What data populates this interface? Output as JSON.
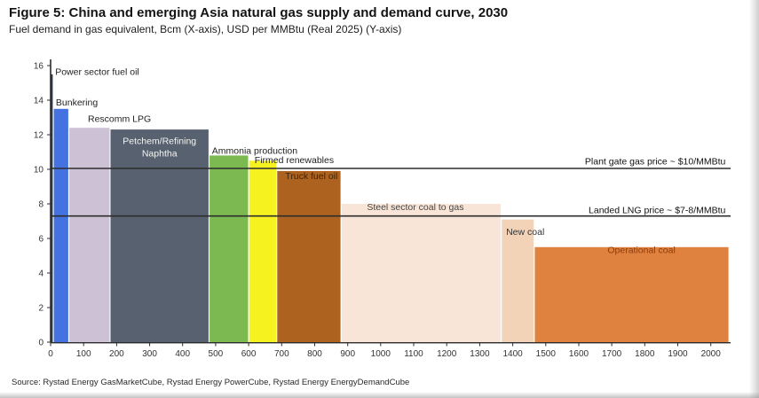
{
  "figure": {
    "title": "Figure 5: China and emerging Asia natural gas supply and demand curve, 2030",
    "subtitle": "Fuel demand in gas equivalent, Bcm (X-axis), USD per MMBtu (Real 2025) (Y-axis)",
    "source": "Source: Rystad Energy GasMarketCube, Rystad Energy PowerCube, Rystad Energy EnergyDemandCube"
  },
  "chart_data": {
    "type": "bar",
    "variant": "supply-demand-step-curve",
    "title": "China and emerging Asia natural gas supply and demand curve, 2030",
    "xlabel": "Fuel demand in gas equivalent, Bcm",
    "ylabel": "USD per MMBtu (Real 2025)",
    "xlim": [
      0,
      2060
    ],
    "ylim": [
      0,
      16
    ],
    "grid": false,
    "x_ticks": [
      0,
      100,
      200,
      300,
      400,
      500,
      600,
      700,
      800,
      900,
      1000,
      1100,
      1200,
      1300,
      1400,
      1500,
      1600,
      1700,
      1800,
      1900,
      2000
    ],
    "y_ticks": [
      0,
      2,
      4,
      6,
      8,
      10,
      12,
      14,
      16
    ],
    "axis_color": "#2b2b2b",
    "tick_label_color": "#333333",
    "segments": [
      {
        "label": "Power sector fuel oil",
        "x_start": 0,
        "x_end": 8,
        "value": 15.5,
        "color": "#2b3542",
        "label_pos": {
          "x": 14,
          "y": 15.45,
          "anchor": "start",
          "color": "#222222"
        }
      },
      {
        "label": "Bunkering",
        "x_start": 8,
        "x_end": 55,
        "value": 13.5,
        "color": "#4472e0",
        "label_pos": {
          "x": 16,
          "y": 13.7,
          "anchor": "start",
          "color": "#222222"
        }
      },
      {
        "label": "Rescomm LPG",
        "x_start": 55,
        "x_end": 180,
        "value": 12.4,
        "color": "#ccc1d5",
        "label_pos": {
          "x": 113,
          "y": 12.75,
          "anchor": "start",
          "color": "#222222"
        }
      },
      {
        "label": "Petchem/Refining Naphtha",
        "label_lines": [
          "Petchem/Refining",
          "Naphtha"
        ],
        "x_start": 180,
        "x_end": 480,
        "value": 12.3,
        "color": "#57616f",
        "label_pos": {
          "x": 330,
          "y": 11.45,
          "line_gap": 0.7,
          "anchor": "middle",
          "color": "#f5f5f5"
        }
      },
      {
        "label": "Ammonia production",
        "x_start": 480,
        "x_end": 600,
        "value": 10.8,
        "color": "#7db951",
        "label_pos": {
          "x": 489,
          "y": 10.9,
          "anchor": "start",
          "color": "#222222"
        }
      },
      {
        "label": "Firmed renewables",
        "x_start": 600,
        "x_end": 685,
        "value": 10.5,
        "color": "#f6f220",
        "label_pos": {
          "x": 618,
          "y": 10.35,
          "anchor": "start",
          "color": "#222222"
        }
      },
      {
        "label": "Truck fuel oil",
        "x_start": 685,
        "x_end": 880,
        "value": 9.9,
        "color": "#ad6220",
        "label_pos": {
          "x": 790,
          "y": 9.44,
          "anchor": "middle",
          "color": "#3f2408"
        }
      },
      {
        "label": "Steel sector coal to gas",
        "x_start": 880,
        "x_end": 1365,
        "value": 8.0,
        "color": "#f8e5d7",
        "label_pos": {
          "x": 1105,
          "y": 7.64,
          "anchor": "middle",
          "color": "#454545"
        }
      },
      {
        "label": "New coal",
        "x_start": 1365,
        "x_end": 1465,
        "value": 7.1,
        "color": "#f3d3b8",
        "label_pos": {
          "x": 1438,
          "y": 6.2,
          "anchor": "middle",
          "color": "#333333"
        }
      },
      {
        "label": "Operational coal",
        "x_start": 1465,
        "x_end": 2055,
        "value": 5.5,
        "color": "#e0823f",
        "label_pos": {
          "x": 1790,
          "y": 5.15,
          "anchor": "middle",
          "color": "#8a3c10"
        }
      }
    ],
    "price_lines": [
      {
        "label": "Plant gate gas price ~ $10/MMBtu",
        "y": 10.05,
        "color": "#2d2d2d",
        "label_pos": {
          "x": 2045,
          "y": 10.28,
          "anchor": "end",
          "color": "#111111"
        }
      },
      {
        "label": "Landed LNG price ~ $7-8/MMBtu",
        "y": 7.3,
        "color": "#2d2d2d",
        "label_pos": {
          "x": 2045,
          "y": 7.46,
          "anchor": "end",
          "color": "#111111"
        }
      }
    ]
  }
}
